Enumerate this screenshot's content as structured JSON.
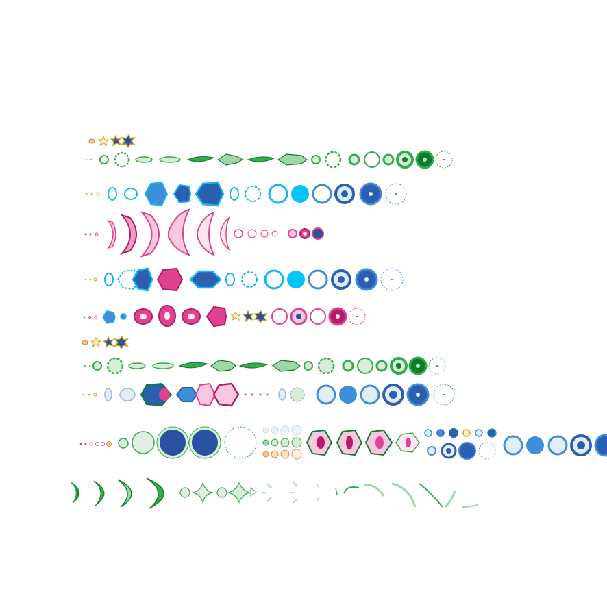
{
  "sheet": {
    "background": "#ffffff",
    "palette": {
      "green": "#2fae4a",
      "green_dark": "#137a2c",
      "green_pale": "#d8ecd8",
      "cyan": "#12b8f0",
      "cyan_fill": "#06c3f5",
      "blue": "#2c5fb0",
      "blue_mid": "#3f8ed9",
      "navy": "#2b52a0",
      "pink": "#e0428f",
      "pink_dark": "#b01e6a",
      "orange": "#f0a050",
      "gold": "#c9a02a"
    },
    "rows": [
      {
        "id": "row-1-green-sparks",
        "kind": "spark-stars",
        "color": "green",
        "frames": 4
      },
      {
        "id": "row-2-green-bolts",
        "kind": "projectile-and-rings",
        "color": "green",
        "projectile_frames": 10,
        "ring_frames": 6
      },
      {
        "id": "row-3-cyan-energy",
        "kind": "projectile-and-rings",
        "color": "cyan",
        "projectile_frames": 8,
        "ring_frames": 6
      },
      {
        "id": "row-4-pink-waves",
        "kind": "wave-and-rings",
        "color": "pink",
        "projectile_frames": 6,
        "ring_frames": 7
      },
      {
        "id": "row-5-blue-energy",
        "kind": "projectile-and-rings",
        "color": "cyan",
        "projectile_frames": 7,
        "ring_frames": 6
      },
      {
        "id": "row-6-pink-energy",
        "kind": "projectile-and-rings",
        "color": "pink",
        "projectile_frames": 6,
        "ring_frames": 5
      },
      {
        "id": "row-7-gold-sparks",
        "kind": "spark-stars",
        "color": "gold",
        "frames": 4
      },
      {
        "id": "row-8-green-bolts",
        "kind": "projectile-and-rings",
        "color": "green",
        "projectile_frames": 10,
        "ring_frames": 6
      },
      {
        "id": "row-9-mixed-energy",
        "kind": "projectile-and-rings",
        "color": "blue",
        "projectile_frames": 7,
        "ring_frames": 6
      },
      {
        "id": "row-10-orbs",
        "kind": "orbs-and-bursts",
        "color": "blue",
        "frames": 18
      },
      {
        "id": "row-11-slashes",
        "kind": "crescent-slashes",
        "color": "green",
        "frames": 16
      }
    ]
  }
}
